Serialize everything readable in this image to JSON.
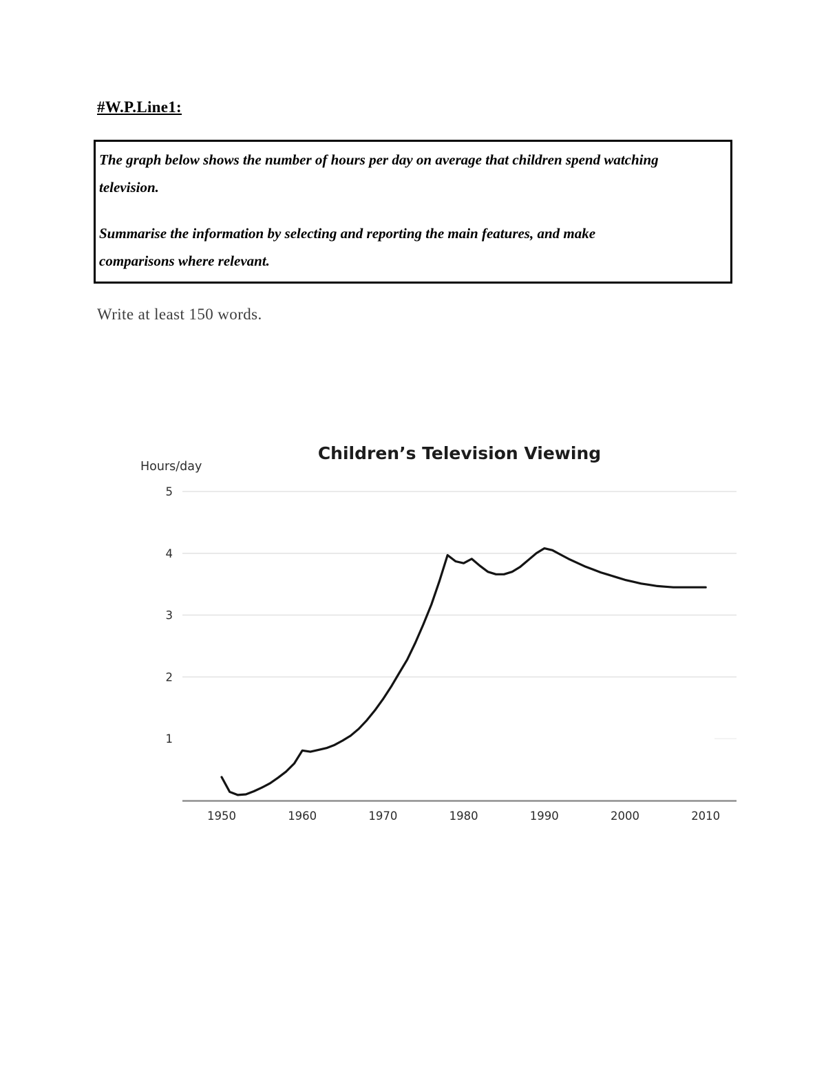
{
  "document": {
    "heading": "#W.P.Line1:",
    "prompt_box": {
      "line1": "The graph below shows the number of hours per day on average that children spend watching",
      "line2": "television.",
      "line3": "Summarise the information by selecting and reporting the main features, and make",
      "line4": "comparisons where relevant."
    },
    "instruction": "Write at least 150 words."
  },
  "chart_data": {
    "type": "line",
    "title": "Children’s Television Viewing",
    "ylabel": "Hours/day",
    "xlabel": "",
    "xticks": [
      1950,
      1960,
      1970,
      1980,
      1990,
      2000,
      2010
    ],
    "yticks": [
      1,
      2,
      3,
      4,
      5
    ],
    "xlim": [
      1945,
      2014
    ],
    "ylim": [
      0,
      5
    ],
    "grid": "horizontal",
    "legend": "none",
    "line_color": "#141414",
    "axis_color": "#8f8f8f",
    "gridline_color": "#e4e4e4",
    "x": [
      1950,
      1951,
      1952,
      1953,
      1954,
      1955,
      1956,
      1957,
      1958,
      1959,
      1960,
      1961,
      1962,
      1963,
      1964,
      1965,
      1966,
      1967,
      1968,
      1969,
      1970,
      1971,
      1972,
      1973,
      1974,
      1975,
      1976,
      1977,
      1978,
      1979,
      1980,
      1981,
      1982,
      1983,
      1984,
      1985,
      1986,
      1987,
      1988,
      1989,
      1990,
      1991,
      1992,
      1993,
      1994,
      1995,
      1996,
      1997,
      1998,
      1999,
      2000,
      2001,
      2002,
      2003,
      2004,
      2005,
      2006,
      2007,
      2008,
      2009,
      2010
    ],
    "series": [
      {
        "name": "Hours/day",
        "values": [
          0.38,
          0.14,
          0.09,
          0.1,
          0.15,
          0.21,
          0.28,
          0.37,
          0.47,
          0.6,
          0.81,
          0.79,
          0.82,
          0.85,
          0.9,
          0.97,
          1.05,
          1.16,
          1.3,
          1.46,
          1.64,
          1.84,
          2.06,
          2.28,
          2.55,
          2.85,
          3.17,
          3.55,
          3.97,
          3.87,
          3.84,
          3.91,
          3.8,
          3.7,
          3.66,
          3.66,
          3.7,
          3.78,
          3.89,
          4.0,
          4.08,
          4.05,
          3.98,
          3.91,
          3.85,
          3.79,
          3.74,
          3.69,
          3.65,
          3.61,
          3.57,
          3.54,
          3.51,
          3.49,
          3.47,
          3.46,
          3.45,
          3.45,
          3.45,
          3.45,
          3.45
        ]
      }
    ]
  }
}
